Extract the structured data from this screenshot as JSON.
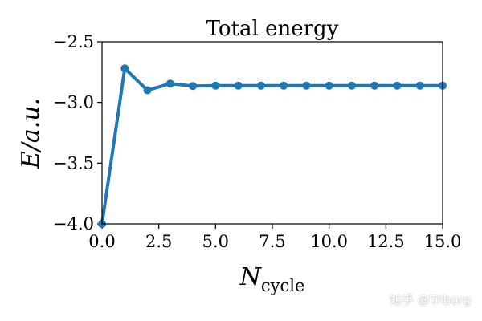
{
  "chart_data": {
    "type": "line",
    "title": "Total energy",
    "xlabel": "N",
    "xlabel_sub": "cycle",
    "ylabel": "E/a.u.",
    "xlim": [
      0,
      15
    ],
    "ylim": [
      -4.0,
      -2.5
    ],
    "xticks": [
      0,
      2.5,
      5,
      7.5,
      10,
      12.5,
      15
    ],
    "xtick_labels": [
      "0.0",
      "2.5",
      "5.0",
      "7.5",
      "10.0",
      "12.5",
      "15.0"
    ],
    "yticks": [
      -2.5,
      -3.0,
      -3.5,
      -4.0
    ],
    "ytick_labels": [
      "−2.5",
      "−3.0",
      "−3.5",
      "−4.0"
    ],
    "grid": false,
    "series": [
      {
        "name": "Total energy",
        "color": "#1f77b4",
        "x": [
          0,
          1,
          2,
          3,
          4,
          5,
          6,
          7,
          8,
          9,
          10,
          11,
          12,
          13,
          14,
          15
        ],
        "y": [
          -4.0,
          -2.72,
          -2.9,
          -2.845,
          -2.865,
          -2.862,
          -2.862,
          -2.862,
          -2.862,
          -2.862,
          -2.862,
          -2.862,
          -2.862,
          -2.862,
          -2.862,
          -2.862
        ]
      }
    ]
  },
  "watermark": "知乎 @Triborg"
}
